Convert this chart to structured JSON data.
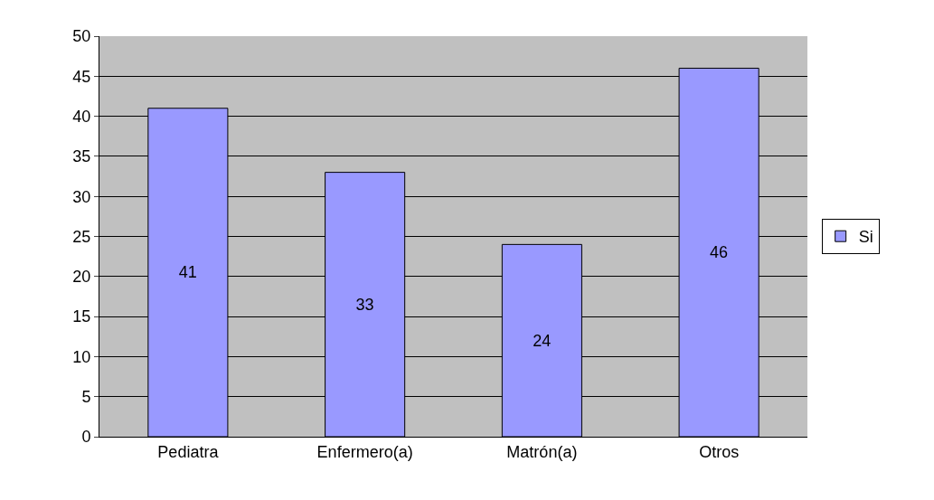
{
  "chart_data": {
    "type": "bar",
    "categories": [
      "Pediatra",
      "Enfermero(a)",
      "Matrón(a)",
      "Otros"
    ],
    "series": [
      {
        "name": "Si",
        "color": "#9999ff",
        "values": [
          41,
          33,
          24,
          46
        ]
      }
    ],
    "ylim": [
      0,
      50
    ],
    "yticks": [
      0,
      5,
      10,
      15,
      20,
      25,
      30,
      35,
      40,
      45,
      50
    ],
    "grid": "y",
    "legend": "right",
    "data_labels": true
  }
}
